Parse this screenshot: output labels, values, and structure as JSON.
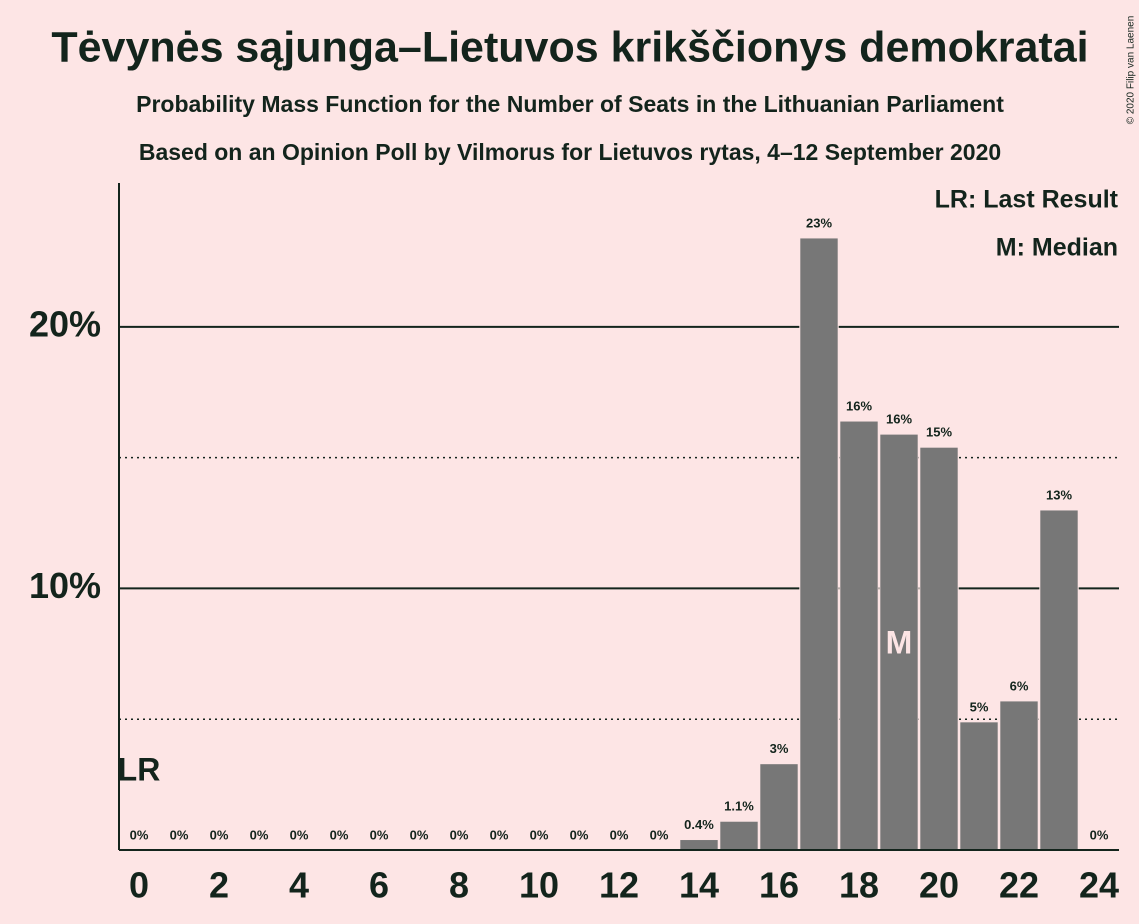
{
  "chart_data": {
    "type": "bar",
    "title": "Tėvynės sąjunga–Lietuvos krikščionys demokratai",
    "subtitle": "Probability Mass Function for the Number of Seats in the Lithuanian Parliament",
    "subtitle2": "Based on an Opinion Poll by Vilmorus for Lietuvos rytas, 4–12 September 2020",
    "copyright": "© 2020 Filip van Laenen",
    "x": [
      0,
      1,
      2,
      3,
      4,
      5,
      6,
      7,
      8,
      9,
      10,
      11,
      12,
      13,
      14,
      15,
      16,
      17,
      18,
      19,
      20,
      21,
      22,
      23,
      24
    ],
    "values": [
      0,
      0,
      0,
      0,
      0,
      0,
      0,
      0,
      0,
      0,
      0,
      0,
      0,
      0,
      0.4,
      1.1,
      3.3,
      23.4,
      16.4,
      15.9,
      15.4,
      4.9,
      5.7,
      13.0,
      0
    ],
    "value_labels": [
      "0%",
      "0%",
      "0%",
      "0%",
      "0%",
      "0%",
      "0%",
      "0%",
      "0%",
      "0%",
      "0%",
      "0%",
      "0%",
      "0%",
      "0.4%",
      "1.1%",
      "3%",
      "23%",
      "16%",
      "16%",
      "15%",
      "5%",
      "6%",
      "13%",
      "0%"
    ],
    "color": "#777777",
    "xlim": [
      -0.5,
      24.5
    ],
    "xticks": [
      0,
      2,
      4,
      6,
      8,
      10,
      12,
      14,
      16,
      18,
      20,
      22,
      24
    ],
    "ylim": [
      0,
      25.5
    ],
    "yticks": [
      {
        "value": 10,
        "label": "10%"
      },
      {
        "value": 20,
        "label": "20%"
      }
    ],
    "minor_grid": [
      5,
      15
    ],
    "last_result": {
      "x": 0,
      "label": "LR"
    },
    "median": {
      "x": 19,
      "label": "M"
    },
    "legend": [
      "LR: Last Result",
      "M: Median"
    ]
  }
}
